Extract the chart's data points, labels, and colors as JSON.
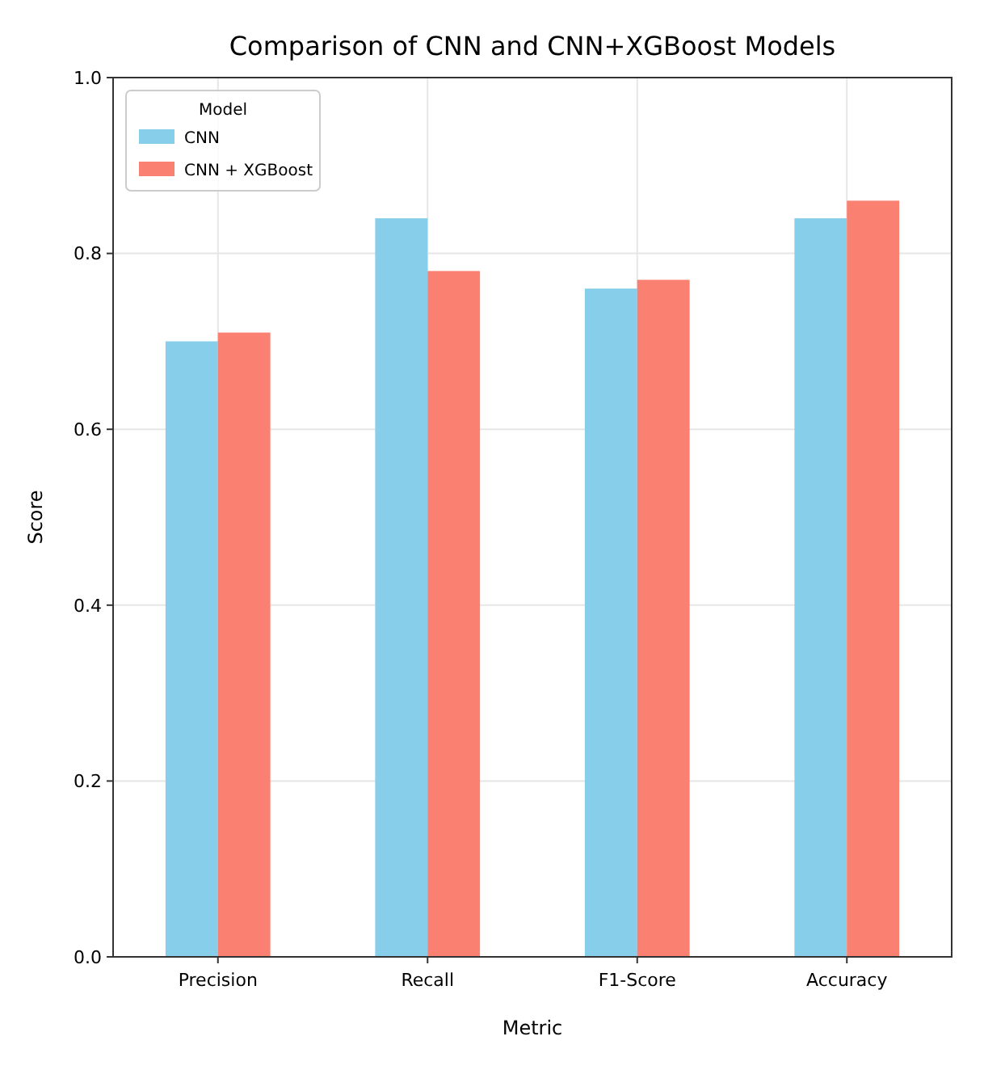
{
  "chart_data": {
    "type": "bar",
    "title": "Comparison of CNN and CNN+XGBoost Models",
    "xlabel": "Metric",
    "ylabel": "Score",
    "legend_title": "Model",
    "categories": [
      "Precision",
      "Recall",
      "F1-Score",
      "Accuracy"
    ],
    "series": [
      {
        "name": "CNN",
        "color": "#87ceeb",
        "values": [
          0.7,
          0.84,
          0.76,
          0.84
        ]
      },
      {
        "name": "CNN + XGBoost",
        "color": "#fa8072",
        "values": [
          0.71,
          0.78,
          0.77,
          0.86
        ]
      }
    ],
    "ylim": [
      0,
      1
    ],
    "yticks": [
      {
        "value": 0,
        "label": "0.0"
      },
      {
        "value": 0.2,
        "label": "0.2"
      },
      {
        "value": 0.4,
        "label": "0.4"
      },
      {
        "value": 0.6,
        "label": "0.6"
      },
      {
        "value": 0.8,
        "label": "0.8"
      },
      {
        "value": 1,
        "label": "1.0"
      }
    ],
    "grid": true,
    "legend": "top left"
  }
}
